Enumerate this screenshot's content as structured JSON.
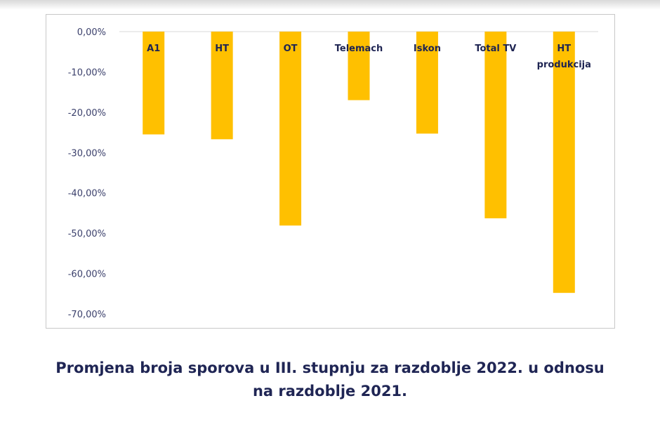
{
  "caption": {
    "line1": "Promjena broja sporova u III. stupnju za razdoblje 2022. u odnosu",
    "line2": "na razdoblje 2021."
  },
  "colors": {
    "bar": "#FFC000",
    "grid": "#d9d9d9",
    "axis_text": "#3a3f6b",
    "category_text": "#1e2452"
  },
  "chart_data": {
    "type": "bar",
    "categories": [
      "A1",
      "HT",
      "OT",
      "Telemach",
      "Iskon",
      "Total TV",
      "HT produkcija"
    ],
    "category_label_lines": [
      [
        "A1"
      ],
      [
        "HT"
      ],
      [
        "OT"
      ],
      [
        "Telemach"
      ],
      [
        "Iskon"
      ],
      [
        "Total TV"
      ],
      [
        "HT",
        "produkcija"
      ]
    ],
    "values": [
      -25.5,
      -26.7,
      -48.1,
      -17.0,
      -25.3,
      -46.3,
      -64.8
    ],
    "ylim": [
      -70,
      0
    ],
    "yticks": [
      0,
      -10,
      -20,
      -30,
      -40,
      -50,
      -60,
      -70
    ],
    "ytick_labels": [
      "0,00%",
      "-10,00%",
      "-20,00%",
      "-30,00%",
      "-40,00%",
      "-50,00%",
      "-60,00%",
      "-70,00%"
    ],
    "title": "",
    "xlabel": "",
    "ylabel": "",
    "grid": false,
    "legend": "none"
  }
}
